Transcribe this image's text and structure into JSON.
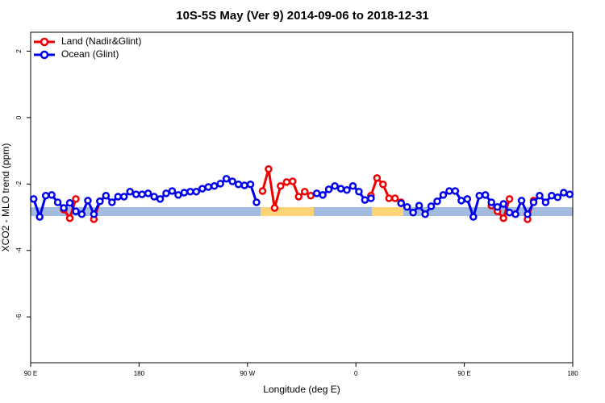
{
  "chart_data": {
    "type": "line",
    "title": "10S-5S May (Ver 9)   2014-09-06 to 2018-12-31",
    "x_label": "Longitude (deg E)",
    "y_label": "XCO2 - MLO trend (ppm)",
    "xlim": [
      90,
      540
    ],
    "ylim": [
      -7.38,
      2.57
    ],
    "xticks": [
      {
        "value": 90,
        "label": "90 E"
      },
      {
        "value": 180,
        "label": "180"
      },
      {
        "value": 270,
        "label": "90 W"
      },
      {
        "value": 360,
        "label": "0"
      },
      {
        "value": 450,
        "label": "90 E"
      },
      {
        "value": 540,
        "label": "180"
      }
    ],
    "yticks": [
      2,
      0,
      -2,
      -4,
      -6
    ],
    "legend": "top-left",
    "series": [
      {
        "name": "Land (Nadir&Glint)",
        "color": "#ee0000",
        "x": [
          117.5,
          122.5,
          127.5,
          null,
          142.5,
          147.5,
          null,
          282.5,
          287.5,
          292.5,
          297.5,
          302.5,
          307.5,
          312.5,
          317.5,
          322.5,
          null,
          372.5,
          377.5,
          382.5,
          387.5,
          392.5,
          397.5,
          null,
          472.5,
          477.5,
          482.5,
          487.5,
          null,
          502.5,
          507.5
        ],
        "values": [
          -2.77,
          -3.03,
          -2.45,
          null,
          -3.06,
          -2.52,
          null,
          -2.21,
          -1.55,
          -2.72,
          -2.06,
          -1.94,
          -1.92,
          -2.38,
          -2.23,
          -2.35,
          null,
          -2.35,
          -1.82,
          -2.01,
          -2.43,
          -2.43,
          -2.55,
          null,
          -2.65,
          -2.82,
          -3.03,
          -2.45,
          null,
          -3.06,
          -2.5
        ]
      },
      {
        "name": "Ocean (Glint)",
        "color": "#0000ee",
        "x": [
          92.5,
          97.5,
          102.5,
          107.5,
          112.5,
          117.5,
          122.5,
          127.5,
          132.5,
          137.5,
          142.5,
          147.5,
          152.5,
          157.5,
          162.5,
          167.5,
          172.5,
          177.5,
          182.5,
          187.5,
          192.5,
          197.5,
          202.5,
          207.5,
          212.5,
          217.5,
          222.5,
          227.5,
          232.5,
          237.5,
          242.5,
          247.5,
          252.5,
          257.5,
          262.5,
          267.5,
          272.5,
          277.5,
          null,
          327.5,
          332.5,
          337.5,
          342.5,
          347.5,
          352.5,
          357.5,
          362.5,
          367.5,
          372.5,
          null,
          397.5,
          402.5,
          407.5,
          412.5,
          417.5,
          422.5,
          427.5,
          432.5,
          437.5,
          442.5,
          447.5,
          452.5,
          457.5,
          462.5,
          467.5,
          472.5,
          477.5,
          482.5,
          487.5,
          492.5,
          497.5,
          502.5,
          507.5,
          512.5,
          517.5,
          522.5,
          527.5,
          532.5,
          537.5
        ],
        "values": [
          -2.45,
          -2.99,
          -2.35,
          -2.33,
          -2.55,
          -2.72,
          -2.57,
          -2.82,
          -2.91,
          -2.5,
          -2.91,
          -2.52,
          -2.35,
          -2.55,
          -2.38,
          -2.38,
          -2.23,
          -2.31,
          -2.31,
          -2.28,
          -2.38,
          -2.45,
          -2.28,
          -2.21,
          -2.33,
          -2.26,
          -2.23,
          -2.23,
          -2.14,
          -2.09,
          -2.06,
          -1.99,
          -1.84,
          -1.92,
          -2.01,
          -2.04,
          -2.01,
          -2.55,
          null,
          -2.28,
          -2.33,
          -2.16,
          -2.06,
          -2.14,
          -2.18,
          -2.06,
          -2.23,
          -2.48,
          -2.43,
          null,
          -2.58,
          -2.69,
          -2.86,
          -2.65,
          -2.91,
          -2.67,
          -2.52,
          -2.33,
          -2.21,
          -2.21,
          -2.5,
          -2.45,
          -2.99,
          -2.35,
          -2.33,
          -2.55,
          -2.69,
          -2.6,
          -2.86,
          -2.91,
          -2.5,
          -2.91,
          -2.55,
          -2.35,
          -2.55,
          -2.35,
          -2.4,
          -2.26,
          -2.31
        ]
      }
    ]
  }
}
